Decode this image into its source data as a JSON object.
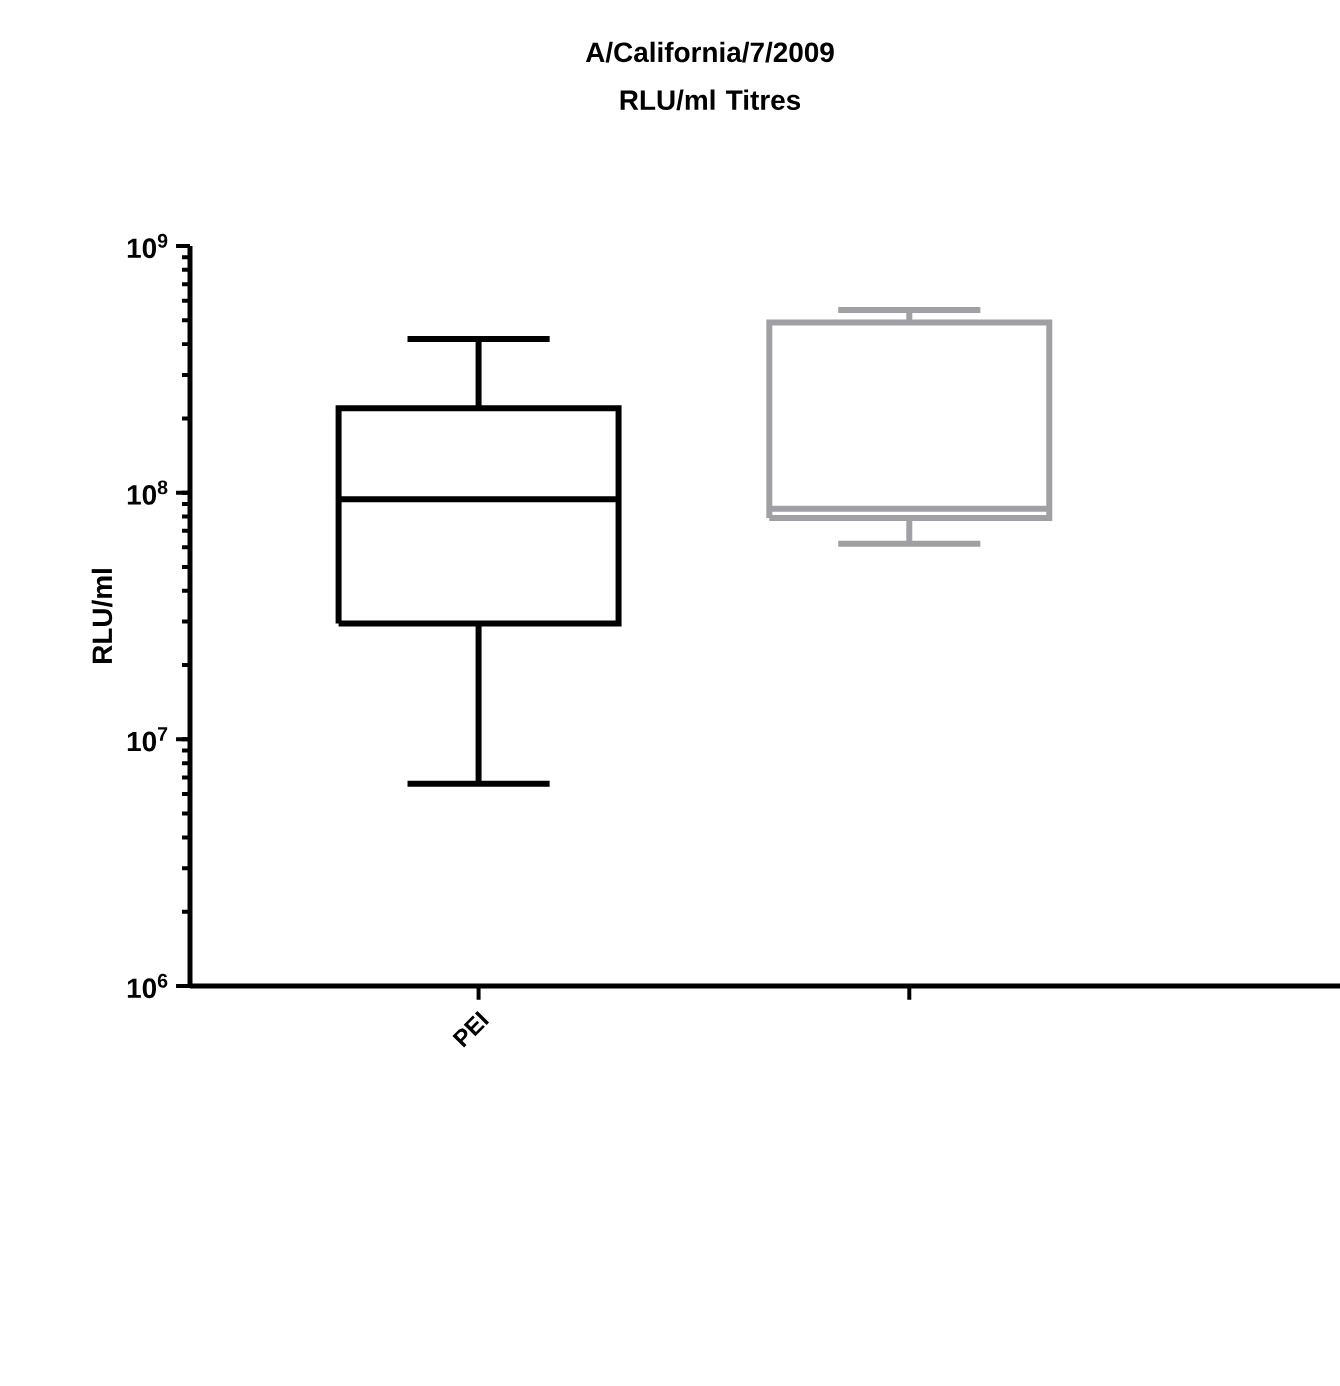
{
  "chart_data": {
    "type": "box",
    "title": "A/California/7/2009\nRLU/ml Titres",
    "ylabel": "RLU/ml",
    "log": true,
    "categories": [
      "PEI",
      null
    ],
    "ylim": [
      1000000,
      1000000000
    ],
    "yticks": [
      {
        "value": 1000000,
        "label": "10$^{6}$"
      },
      {
        "value": 10000000,
        "label": "10$^{7}$"
      },
      {
        "value": 100000000,
        "label": "10$^{8}$"
      },
      {
        "value": 1000000000,
        "label": "10$^{9}$"
      }
    ],
    "colors": [
      "#000000",
      "#a0a0a4"
    ],
    "boxes": [
      {
        "low": 6600000,
        "q1": 29500000,
        "median": 94000000,
        "q3": 220000000,
        "high": 420000000
      },
      {
        "low": 62000000,
        "q1": 79000000,
        "median": 86000000,
        "q3": 490000000,
        "high": 550000000
      }
    ]
  }
}
